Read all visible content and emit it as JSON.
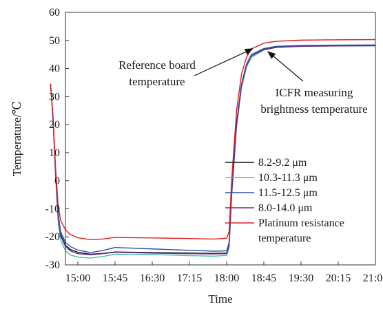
{
  "chart_data": {
    "type": "line",
    "xlabel": "Time",
    "ylabel": "Temperature/℃",
    "x_categories": [
      "15:00",
      "15:45",
      "16:30",
      "17:15",
      "18:00",
      "18:45",
      "19:30",
      "20:15",
      "21:00"
    ],
    "x_range_minutes": [
      0,
      360
    ],
    "x_start": "14:45",
    "x_end": "21:00",
    "ylim": [
      -30,
      60
    ],
    "yticks": [
      -30,
      -20,
      -10,
      0,
      10,
      20,
      30,
      40,
      50,
      60
    ],
    "grid": false,
    "legend_position": "lower-right",
    "series": [
      {
        "name": "8.2-9.2 μm",
        "color": "#111111",
        "points": [
          [
            14.45,
            34.5
          ],
          [
            14.5,
            22
          ],
          [
            14.55,
            3
          ],
          [
            14.6,
            -12
          ],
          [
            14.65,
            -19
          ],
          [
            14.75,
            -23
          ],
          [
            14.85,
            -24.5
          ],
          [
            15.0,
            -25.5
          ],
          [
            15.25,
            -26.2
          ],
          [
            15.5,
            -25.9
          ],
          [
            15.75,
            -25.4
          ],
          [
            16.5,
            -25.6
          ],
          [
            17.25,
            -25.8
          ],
          [
            17.75,
            -25.9
          ],
          [
            18.0,
            -25.8
          ],
          [
            18.05,
            -23
          ],
          [
            18.1,
            -5
          ],
          [
            18.2,
            20
          ],
          [
            18.3,
            34
          ],
          [
            18.4,
            41
          ],
          [
            18.5,
            44.5
          ],
          [
            18.75,
            46.8
          ],
          [
            19.0,
            47.6
          ],
          [
            19.5,
            48
          ],
          [
            20.0,
            48.1
          ],
          [
            21.0,
            48.2
          ]
        ]
      },
      {
        "name": "10.3-11.3 μm",
        "color": "#40c0b0",
        "points": [
          [
            14.45,
            34.5
          ],
          [
            14.5,
            22
          ],
          [
            14.55,
            2
          ],
          [
            14.6,
            -14
          ],
          [
            14.65,
            -21
          ],
          [
            14.75,
            -25
          ],
          [
            14.85,
            -26.5
          ],
          [
            15.0,
            -27.2
          ],
          [
            15.25,
            -27.6
          ],
          [
            15.5,
            -27
          ],
          [
            15.75,
            -26.2
          ],
          [
            16.5,
            -26.3
          ],
          [
            17.25,
            -26.7
          ],
          [
            17.75,
            -26.9
          ],
          [
            18.0,
            -26.6
          ],
          [
            18.05,
            -24
          ],
          [
            18.1,
            -6
          ],
          [
            18.2,
            19
          ],
          [
            18.3,
            33
          ],
          [
            18.4,
            40.5
          ],
          [
            18.5,
            44
          ],
          [
            18.75,
            46.6
          ],
          [
            19.0,
            47.5
          ],
          [
            19.5,
            47.9
          ],
          [
            20.0,
            48
          ],
          [
            21.0,
            48.1
          ]
        ]
      },
      {
        "name": "11.5-12.5 μm",
        "color": "#2a52a8",
        "points": [
          [
            14.45,
            34.5
          ],
          [
            14.5,
            22
          ],
          [
            14.55,
            4
          ],
          [
            14.6,
            -11
          ],
          [
            14.65,
            -18
          ],
          [
            14.75,
            -22
          ],
          [
            14.85,
            -23.5
          ],
          [
            15.0,
            -24.7
          ],
          [
            15.25,
            -25.6
          ],
          [
            15.5,
            -24.9
          ],
          [
            15.75,
            -23.8
          ],
          [
            16.5,
            -24.3
          ],
          [
            17.25,
            -24.8
          ],
          [
            17.75,
            -25.1
          ],
          [
            18.0,
            -25.0
          ],
          [
            18.05,
            -22
          ],
          [
            18.1,
            -4
          ],
          [
            18.2,
            21
          ],
          [
            18.3,
            34.5
          ],
          [
            18.4,
            41.5
          ],
          [
            18.5,
            45
          ],
          [
            18.75,
            47.1
          ],
          [
            19.0,
            47.9
          ],
          [
            19.5,
            48.2
          ],
          [
            20.0,
            48.3
          ],
          [
            21.0,
            48.4
          ]
        ]
      },
      {
        "name": "8.0-14.0 μm",
        "color": "#6a2c8a",
        "points": [
          [
            14.45,
            34.5
          ],
          [
            14.5,
            22
          ],
          [
            14.55,
            3
          ],
          [
            14.6,
            -12
          ],
          [
            14.65,
            -19.5
          ],
          [
            14.75,
            -23.5
          ],
          [
            14.85,
            -25
          ],
          [
            15.0,
            -26
          ],
          [
            15.25,
            -26.4
          ],
          [
            15.5,
            -26
          ],
          [
            15.75,
            -25.5
          ],
          [
            16.5,
            -25.8
          ],
          [
            17.25,
            -26
          ],
          [
            17.75,
            -26.1
          ],
          [
            18.0,
            -26
          ],
          [
            18.05,
            -23
          ],
          [
            18.1,
            -5
          ],
          [
            18.2,
            20
          ],
          [
            18.3,
            34
          ],
          [
            18.4,
            41
          ],
          [
            18.5,
            44.5
          ],
          [
            18.75,
            46.7
          ],
          [
            19.0,
            47.5
          ],
          [
            19.5,
            47.9
          ],
          [
            20.0,
            48
          ],
          [
            21.0,
            48.1
          ]
        ]
      },
      {
        "name": "Platinum resistance temperature",
        "color": "#e02020",
        "points": [
          [
            14.45,
            34.5
          ],
          [
            14.5,
            23
          ],
          [
            14.55,
            5
          ],
          [
            14.6,
            -8
          ],
          [
            14.65,
            -14
          ],
          [
            14.75,
            -17.5
          ],
          [
            14.85,
            -19.2
          ],
          [
            15.0,
            -20.3
          ],
          [
            15.25,
            -21
          ],
          [
            15.5,
            -20.8
          ],
          [
            15.75,
            -20.2
          ],
          [
            16.5,
            -20.4
          ],
          [
            17.25,
            -20.6
          ],
          [
            17.75,
            -20.8
          ],
          [
            18.0,
            -20.5
          ],
          [
            18.05,
            -18
          ],
          [
            18.1,
            0
          ],
          [
            18.2,
            25
          ],
          [
            18.3,
            38
          ],
          [
            18.4,
            44
          ],
          [
            18.5,
            47
          ],
          [
            18.75,
            49
          ],
          [
            19.0,
            49.7
          ],
          [
            19.5,
            50.1
          ],
          [
            20.0,
            50.2
          ],
          [
            21.0,
            50.3
          ]
        ]
      }
    ],
    "annotations": [
      {
        "lines": [
          "Reference board",
          "temperature"
        ],
        "arrow_target": [
          18.55,
          48.5
        ]
      },
      {
        "lines": [
          "ICFR measuring",
          "brightness temperature"
        ],
        "arrow_target": [
          18.75,
          47.0
        ]
      }
    ]
  }
}
